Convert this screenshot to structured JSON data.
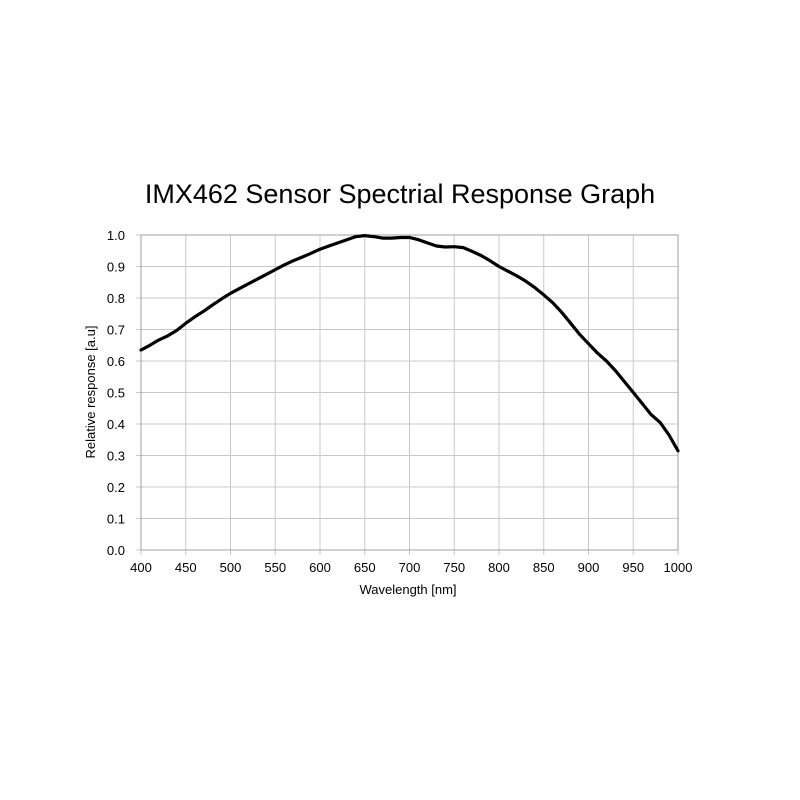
{
  "chart_data": {
    "type": "line",
    "title": "IMX462 Sensor Spectrial Response Graph",
    "xlabel": "Wavelength [nm]",
    "ylabel": "Relative response [a.u]",
    "xlim": [
      400,
      1000
    ],
    "ylim": [
      0.0,
      1.0
    ],
    "x_ticks": [
      "400",
      "450",
      "500",
      "550",
      "600",
      "650",
      "700",
      "750",
      "800",
      "850",
      "900",
      "950",
      "1000"
    ],
    "y_ticks": [
      "0.0",
      "0.1",
      "0.2",
      "0.3",
      "0.4",
      "0.5",
      "0.6",
      "0.7",
      "0.8",
      "0.9",
      "1.0"
    ],
    "grid": true,
    "series": [
      {
        "x": [
          400,
          410,
          420,
          430,
          440,
          450,
          460,
          470,
          480,
          490,
          500,
          510,
          520,
          530,
          540,
          550,
          560,
          570,
          580,
          590,
          600,
          610,
          620,
          630,
          640,
          650,
          660,
          670,
          680,
          690,
          700,
          710,
          720,
          730,
          740,
          750,
          760,
          770,
          780,
          790,
          800,
          810,
          820,
          830,
          840,
          850,
          860,
          870,
          880,
          890,
          900,
          910,
          920,
          930,
          940,
          950,
          960,
          970,
          980,
          990,
          1000
        ],
        "y": [
          0.635,
          0.65,
          0.667,
          0.68,
          0.697,
          0.72,
          0.74,
          0.758,
          0.778,
          0.797,
          0.815,
          0.83,
          0.845,
          0.86,
          0.875,
          0.89,
          0.905,
          0.918,
          0.93,
          0.942,
          0.955,
          0.965,
          0.975,
          0.985,
          0.995,
          0.998,
          0.995,
          0.99,
          0.99,
          0.992,
          0.992,
          0.985,
          0.975,
          0.965,
          0.962,
          0.963,
          0.96,
          0.948,
          0.935,
          0.918,
          0.9,
          0.885,
          0.87,
          0.853,
          0.833,
          0.81,
          0.785,
          0.755,
          0.72,
          0.685,
          0.655,
          0.625,
          0.6,
          0.57,
          0.535,
          0.5,
          0.465,
          0.43,
          0.405,
          0.365,
          0.315
        ]
      }
    ]
  }
}
